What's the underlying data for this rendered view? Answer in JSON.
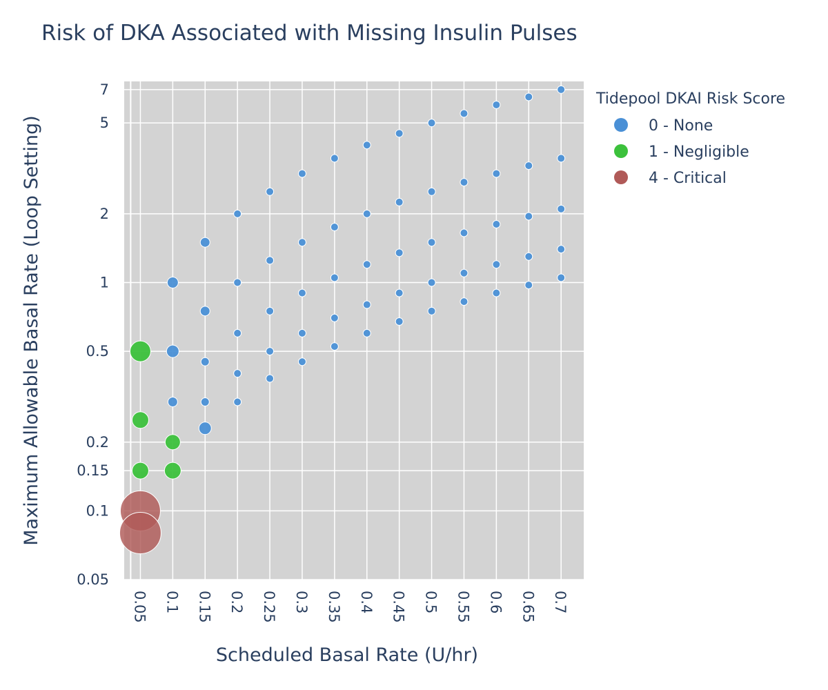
{
  "chart_data": {
    "type": "scatter",
    "title": "Risk of DKA Associated with Missing Insulin Pulses",
    "xlabel": "Scheduled Basal Rate (U/hr)",
    "ylabel": "Maximum Allowable Basal Rate (Loop Setting)",
    "y_scale": "log",
    "ylim": [
      0.05,
      7.6
    ],
    "xlim": [
      0.025,
      0.735
    ],
    "x_ticks": [
      "0.05",
      "0.1",
      "0.15",
      "0.2",
      "0.25",
      "0.3",
      "0.35",
      "0.4",
      "0.45",
      "0.5",
      "0.55",
      "0.6",
      "0.65",
      "0.7"
    ],
    "y_ticks": [
      "0.05",
      "0.1",
      "0.15",
      "0.2",
      "0.5",
      "1",
      "2",
      "5",
      "7"
    ],
    "legend_title": "Tidepool DKAI Risk Score",
    "legend_position": "top-right",
    "grid": true,
    "plot_background": "#d3d3d3",
    "series": [
      {
        "name": "0 - None",
        "color": "#4a90d6",
        "points": [
          {
            "x": 0.1,
            "y": 1.0,
            "size": 16
          },
          {
            "x": 0.1,
            "y": 0.5,
            "size": 18
          },
          {
            "x": 0.1,
            "y": 0.3,
            "size": 14
          },
          {
            "x": 0.15,
            "y": 1.5,
            "size": 14
          },
          {
            "x": 0.15,
            "y": 0.75,
            "size": 14
          },
          {
            "x": 0.15,
            "y": 0.45,
            "size": 12
          },
          {
            "x": 0.15,
            "y": 0.3,
            "size": 12
          },
          {
            "x": 0.15,
            "y": 0.23,
            "size": 18
          },
          {
            "x": 0.2,
            "y": 2.0,
            "size": 11
          },
          {
            "x": 0.2,
            "y": 1.0,
            "size": 11
          },
          {
            "x": 0.2,
            "y": 0.6,
            "size": 11
          },
          {
            "x": 0.2,
            "y": 0.4,
            "size": 11
          },
          {
            "x": 0.2,
            "y": 0.3,
            "size": 11
          },
          {
            "x": 0.25,
            "y": 2.5,
            "size": 11
          },
          {
            "x": 0.25,
            "y": 1.25,
            "size": 11
          },
          {
            "x": 0.25,
            "y": 0.75,
            "size": 11
          },
          {
            "x": 0.25,
            "y": 0.5,
            "size": 11
          },
          {
            "x": 0.25,
            "y": 0.38,
            "size": 11
          },
          {
            "x": 0.3,
            "y": 3.0,
            "size": 11
          },
          {
            "x": 0.3,
            "y": 1.5,
            "size": 11
          },
          {
            "x": 0.3,
            "y": 0.9,
            "size": 11
          },
          {
            "x": 0.3,
            "y": 0.6,
            "size": 11
          },
          {
            "x": 0.3,
            "y": 0.45,
            "size": 11
          },
          {
            "x": 0.35,
            "y": 3.5,
            "size": 11
          },
          {
            "x": 0.35,
            "y": 1.75,
            "size": 11
          },
          {
            "x": 0.35,
            "y": 1.05,
            "size": 11
          },
          {
            "x": 0.35,
            "y": 0.7,
            "size": 11
          },
          {
            "x": 0.35,
            "y": 0.525,
            "size": 11
          },
          {
            "x": 0.4,
            "y": 4.0,
            "size": 11
          },
          {
            "x": 0.4,
            "y": 2.0,
            "size": 11
          },
          {
            "x": 0.4,
            "y": 1.2,
            "size": 11
          },
          {
            "x": 0.4,
            "y": 0.8,
            "size": 11
          },
          {
            "x": 0.4,
            "y": 0.6,
            "size": 11
          },
          {
            "x": 0.45,
            "y": 4.5,
            "size": 11
          },
          {
            "x": 0.45,
            "y": 2.25,
            "size": 11
          },
          {
            "x": 0.45,
            "y": 1.35,
            "size": 11
          },
          {
            "x": 0.45,
            "y": 0.9,
            "size": 11
          },
          {
            "x": 0.45,
            "y": 0.675,
            "size": 11
          },
          {
            "x": 0.5,
            "y": 5.0,
            "size": 11
          },
          {
            "x": 0.5,
            "y": 2.5,
            "size": 11
          },
          {
            "x": 0.5,
            "y": 1.5,
            "size": 11
          },
          {
            "x": 0.5,
            "y": 1.0,
            "size": 11
          },
          {
            "x": 0.5,
            "y": 0.75,
            "size": 11
          },
          {
            "x": 0.55,
            "y": 5.5,
            "size": 11
          },
          {
            "x": 0.55,
            "y": 2.75,
            "size": 11
          },
          {
            "x": 0.55,
            "y": 1.65,
            "size": 11
          },
          {
            "x": 0.55,
            "y": 1.1,
            "size": 11
          },
          {
            "x": 0.55,
            "y": 0.825,
            "size": 11
          },
          {
            "x": 0.6,
            "y": 6.0,
            "size": 11
          },
          {
            "x": 0.6,
            "y": 3.0,
            "size": 11
          },
          {
            "x": 0.6,
            "y": 1.8,
            "size": 11
          },
          {
            "x": 0.6,
            "y": 1.2,
            "size": 11
          },
          {
            "x": 0.6,
            "y": 0.9,
            "size": 11
          },
          {
            "x": 0.65,
            "y": 6.5,
            "size": 11
          },
          {
            "x": 0.65,
            "y": 3.25,
            "size": 11
          },
          {
            "x": 0.65,
            "y": 1.95,
            "size": 11
          },
          {
            "x": 0.65,
            "y": 1.3,
            "size": 11
          },
          {
            "x": 0.65,
            "y": 0.975,
            "size": 11
          },
          {
            "x": 0.7,
            "y": 7.0,
            "size": 11
          },
          {
            "x": 0.7,
            "y": 3.5,
            "size": 11
          },
          {
            "x": 0.7,
            "y": 2.1,
            "size": 11
          },
          {
            "x": 0.7,
            "y": 1.4,
            "size": 11
          },
          {
            "x": 0.7,
            "y": 1.05,
            "size": 11
          }
        ]
      },
      {
        "name": "1 - Negligible",
        "color": "#3cc13c",
        "points": [
          {
            "x": 0.05,
            "y": 0.5,
            "size": 30
          },
          {
            "x": 0.05,
            "y": 0.25,
            "size": 24
          },
          {
            "x": 0.05,
            "y": 0.15,
            "size": 24
          },
          {
            "x": 0.1,
            "y": 0.2,
            "size": 22
          },
          {
            "x": 0.1,
            "y": 0.15,
            "size": 24
          }
        ]
      },
      {
        "name": "4 - Critical",
        "color": "#b05a58",
        "points": [
          {
            "x": 0.05,
            "y": 0.1,
            "size": 58
          },
          {
            "x": 0.05,
            "y": 0.08,
            "size": 60
          }
        ]
      }
    ]
  }
}
